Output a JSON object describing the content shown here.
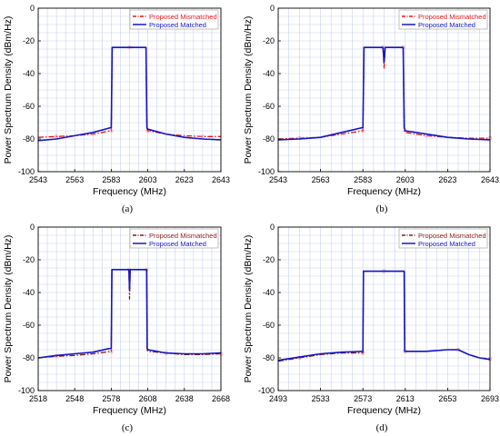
{
  "chart_data": [
    {
      "type": "line",
      "caption": "(a)",
      "xlabel": "Frequency (MHz)",
      "ylabel": "Power Spectrum Density (dBm/Hz)",
      "xlim": [
        2543,
        2643
      ],
      "ylim": [
        -100,
        0
      ],
      "xticks": [
        2543,
        2563,
        2583,
        2603,
        2623,
        2643
      ],
      "yticks": [
        0,
        -20,
        -40,
        -60,
        -80,
        -100
      ],
      "grid": true,
      "legend_position": "top-right",
      "series": [
        {
          "name": "Proposed Mismatched",
          "color": "#e41a1c",
          "style": "dash-dot",
          "x": [
            2543,
            2553,
            2563,
            2573,
            2583,
            2583.5,
            2584,
            2593,
            2602,
            2602.5,
            2603,
            2613,
            2623,
            2633,
            2643
          ],
          "y": [
            -79,
            -78.5,
            -78,
            -77,
            -75,
            -24,
            -24,
            -24,
            -24,
            -74,
            -75,
            -77,
            -78,
            -78.5,
            -78.5
          ]
        },
        {
          "name": "Proposed Matched",
          "color": "#1515c8",
          "style": "solid",
          "x": [
            2543,
            2553,
            2563,
            2573,
            2583,
            2583.5,
            2584,
            2593,
            2602,
            2602.5,
            2603,
            2613,
            2623,
            2633,
            2643
          ],
          "y": [
            -81,
            -80,
            -78,
            -76,
            -73,
            -24,
            -24,
            -24,
            -24,
            -73,
            -74,
            -77,
            -79,
            -80,
            -80.5
          ]
        }
      ]
    },
    {
      "type": "line",
      "caption": "(b)",
      "xlabel": "Frequency (MHz)",
      "ylabel": "Power Spectrum Density (dBm/Hz)",
      "xlim": [
        2543,
        2643
      ],
      "ylim": [
        -100,
        0
      ],
      "xticks": [
        2543,
        2563,
        2583,
        2603,
        2623,
        2643
      ],
      "yticks": [
        0,
        -20,
        -40,
        -60,
        -80,
        -100
      ],
      "grid": true,
      "legend_position": "top-right",
      "series": [
        {
          "name": "Proposed Mismatched",
          "color": "#e41a1c",
          "style": "dash-dot",
          "x": [
            2543,
            2553,
            2563,
            2573,
            2583,
            2583.5,
            2584,
            2592.5,
            2593,
            2593.5,
            2602,
            2602.5,
            2603,
            2613,
            2623,
            2633,
            2643
          ],
          "y": [
            -80,
            -79.5,
            -79,
            -77,
            -75,
            -24,
            -24,
            -24,
            -37,
            -24,
            -24,
            -75,
            -76,
            -78,
            -79,
            -79.5,
            -79.5
          ]
        },
        {
          "name": "Proposed Matched",
          "color": "#1515c8",
          "style": "solid",
          "x": [
            2543,
            2553,
            2563,
            2573,
            2583,
            2583.5,
            2584,
            2592.5,
            2593,
            2593.5,
            2602,
            2602.5,
            2603,
            2613,
            2623,
            2633,
            2643
          ],
          "y": [
            -80.5,
            -80,
            -79,
            -76,
            -73,
            -24,
            -24,
            -24,
            -33,
            -24,
            -24,
            -73,
            -75,
            -77,
            -79,
            -80,
            -80.5
          ]
        }
      ]
    },
    {
      "type": "line",
      "caption": "(c)",
      "xlabel": "Frequency (MHz)",
      "ylabel": "Power Spectrum Density (dBm/Hz)",
      "xlim": [
        2518,
        2668
      ],
      "ylim": [
        -100,
        0
      ],
      "xticks": [
        2518,
        2548,
        2578,
        2608,
        2638,
        2668
      ],
      "yticks": [
        0,
        -20,
        -40,
        -60,
        -80,
        -100
      ],
      "grid": true,
      "legend_position": "top-right",
      "series": [
        {
          "name": "Proposed Mismatched",
          "color": "#8b1a1a",
          "style": "dash-dot",
          "x": [
            2518,
            2533,
            2548,
            2563,
            2578,
            2578.5,
            2579,
            2592.5,
            2593,
            2593.5,
            2607,
            2607.5,
            2608,
            2623,
            2638,
            2653,
            2668
          ],
          "y": [
            -80,
            -79,
            -78.5,
            -77.5,
            -76,
            -26,
            -26,
            -26,
            -44,
            -26,
            -26,
            -75,
            -76,
            -77,
            -78,
            -78,
            -77.5
          ]
        },
        {
          "name": "Proposed Matched",
          "color": "#1515c8",
          "style": "solid",
          "x": [
            2518,
            2533,
            2548,
            2563,
            2578,
            2578.5,
            2579,
            2592.5,
            2593,
            2593.5,
            2607,
            2607.5,
            2608,
            2623,
            2638,
            2653,
            2668
          ],
          "y": [
            -80,
            -78.5,
            -77.5,
            -76.5,
            -74,
            -26,
            -26,
            -26,
            -38,
            -26,
            -26,
            -74,
            -75,
            -77,
            -77.5,
            -77.5,
            -77
          ]
        }
      ]
    },
    {
      "type": "line",
      "caption": "(d)",
      "xlabel": "Frequency (MHz)",
      "ylabel": "Power Spectrum Density (dBm/Hz)",
      "xlim": [
        2493,
        2693
      ],
      "ylim": [
        -100,
        0
      ],
      "xticks": [
        2493,
        2533,
        2573,
        2613,
        2653,
        2693
      ],
      "yticks": [
        0,
        -20,
        -40,
        -60,
        -80,
        -100
      ],
      "grid": true,
      "legend_position": "top-right",
      "series": [
        {
          "name": "Proposed Mismatched",
          "color": "#8b1a1a",
          "style": "dash-dot",
          "x": [
            2493,
            2513,
            2533,
            2553,
            2573,
            2573.5,
            2574,
            2593,
            2612,
            2612.5,
            2613,
            2633,
            2653,
            2663,
            2673,
            2683,
            2693
          ],
          "y": [
            -82,
            -80,
            -78,
            -77,
            -77,
            -27,
            -27,
            -27,
            -27,
            -76,
            -76,
            -76,
            -75,
            -75,
            -78,
            -80,
            -80.5
          ]
        },
        {
          "name": "Proposed Matched",
          "color": "#1515c8",
          "style": "solid",
          "x": [
            2493,
            2513,
            2533,
            2553,
            2573,
            2573.5,
            2574,
            2593,
            2612,
            2612.5,
            2613,
            2633,
            2653,
            2663,
            2673,
            2683,
            2693
          ],
          "y": [
            -81.5,
            -79.5,
            -77.5,
            -76.5,
            -76,
            -27,
            -27,
            -27,
            -27,
            -76,
            -76,
            -76,
            -75,
            -75,
            -78,
            -80,
            -81
          ]
        }
      ]
    }
  ]
}
